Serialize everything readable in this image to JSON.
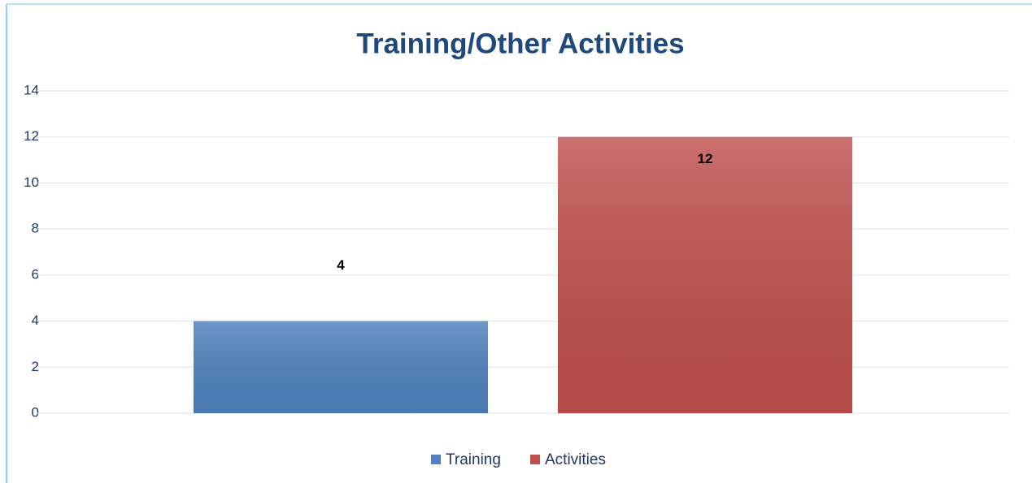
{
  "chart_data": {
    "type": "bar",
    "title": "Training/Other Activities",
    "categories": [
      null
    ],
    "series": [
      {
        "name": "Training",
        "color": "#4f81bd",
        "values": [
          4
        ]
      },
      {
        "name": "Activities",
        "color": "#c0504d",
        "values": [
          12
        ]
      }
    ],
    "ylim": [
      0,
      14
    ],
    "yticks": [
      0,
      2,
      4,
      6,
      8,
      10,
      12,
      14
    ],
    "grid": true,
    "legend": "bottom"
  }
}
